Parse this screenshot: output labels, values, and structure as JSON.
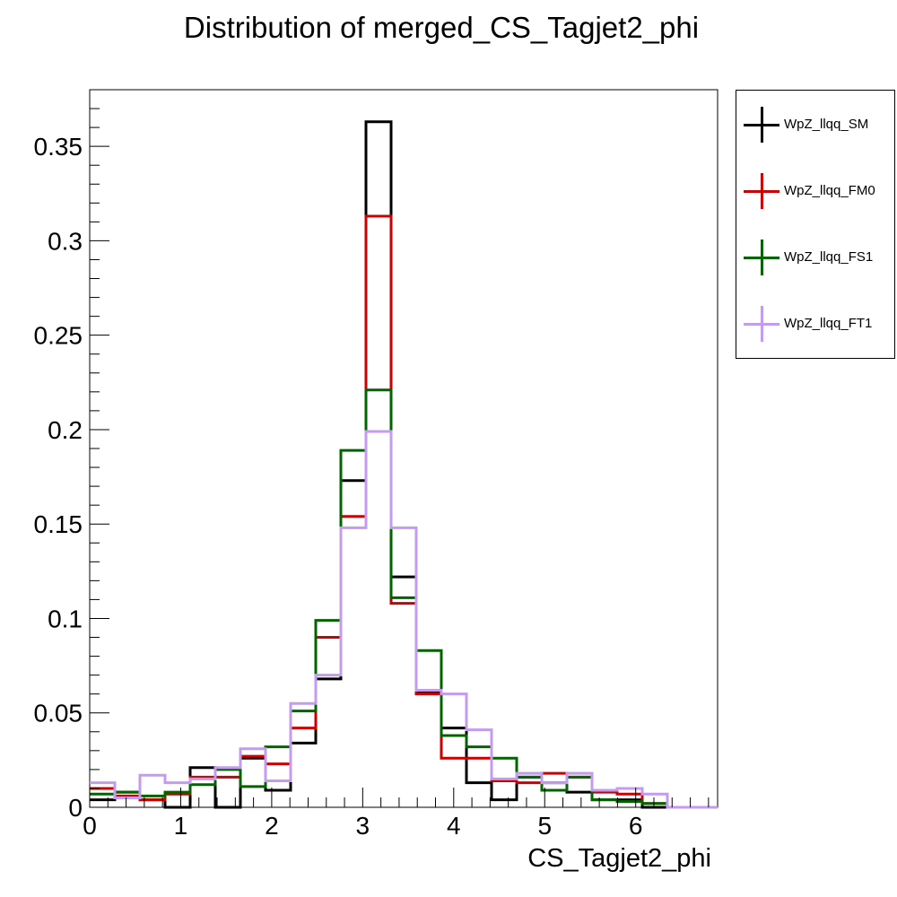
{
  "chart_data": {
    "type": "line",
    "step": true,
    "title": "Distribution of merged_CS_Tagjet2_phi",
    "xlabel": "CS_Tagjet2_phi",
    "ylabel": "",
    "xlim": [
      0,
      6.9
    ],
    "ylim": [
      0,
      0.38
    ],
    "bin_width": 0.276,
    "bin_edges_start": 0,
    "xticks": [
      "0",
      "1",
      "2",
      "3",
      "4",
      "5",
      "6"
    ],
    "yticks": [
      "0",
      "0.05",
      "0.1",
      "0.15",
      "0.2",
      "0.25",
      "0.3",
      "0.35"
    ],
    "grid": false,
    "legend_position": "right",
    "series": [
      {
        "name": "WpZ_llqq_SM",
        "color": "#000000",
        "values": [
          0.004,
          0.008,
          0.004,
          0.0,
          0.021,
          0.0,
          0.026,
          0.009,
          0.034,
          0.068,
          0.173,
          0.363,
          0.122,
          0.061,
          0.042,
          0.013,
          0.004,
          0.016,
          0.013,
          0.008,
          0.004,
          0.004,
          0.0,
          0.0,
          0.0
        ]
      },
      {
        "name": "WpZ_llqq_FM0",
        "color": "#cc0000",
        "values": [
          0.01,
          0.006,
          0.004,
          0.007,
          0.016,
          0.016,
          0.027,
          0.023,
          0.042,
          0.09,
          0.154,
          0.313,
          0.108,
          0.06,
          0.026,
          0.026,
          0.014,
          0.013,
          0.018,
          0.016,
          0.008,
          0.007,
          0.002,
          0.0,
          0.0
        ]
      },
      {
        "name": "WpZ_llqq_FS1",
        "color": "#006400",
        "values": [
          0.007,
          0.008,
          0.006,
          0.008,
          0.012,
          0.02,
          0.011,
          0.032,
          0.051,
          0.099,
          0.189,
          0.221,
          0.111,
          0.083,
          0.038,
          0.032,
          0.026,
          0.016,
          0.009,
          0.016,
          0.004,
          0.003,
          0.002,
          0.0,
          0.0
        ]
      },
      {
        "name": "WpZ_llqq_FT1",
        "color": "#c39bf0",
        "values": [
          0.013,
          0.005,
          0.017,
          0.013,
          0.015,
          0.021,
          0.031,
          0.014,
          0.055,
          0.07,
          0.148,
          0.199,
          0.148,
          0.062,
          0.06,
          0.041,
          0.015,
          0.018,
          0.013,
          0.018,
          0.009,
          0.01,
          0.007,
          0.0,
          0.0
        ]
      }
    ]
  }
}
